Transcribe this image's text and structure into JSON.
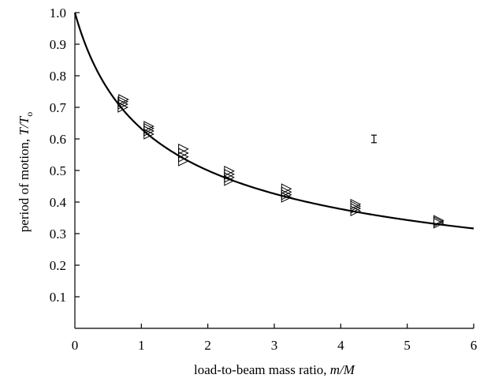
{
  "chart_data": {
    "type": "scatter",
    "title": "",
    "xlabel": {
      "prefix": "load-to-beam mass ratio, ",
      "italic": "m/M"
    },
    "ylabel": {
      "prefix": "period of motion, ",
      "italic_t": "T/T",
      "subscript": "o"
    },
    "xlim": [
      0,
      6
    ],
    "ylim": [
      0,
      1
    ],
    "x_ticks": [
      "0",
      "1",
      "2",
      "3",
      "4",
      "5",
      "6"
    ],
    "y_ticks": [
      "0.1",
      "0.2",
      "0.3",
      "0.4",
      "0.5",
      "0.6",
      "0.7",
      "0.8",
      "0.9",
      "1.0"
    ],
    "grid": false,
    "marker": "right-pointing triangle (open)",
    "series": [
      {
        "points": [
          {
            "x": 0.71,
            "y": 0.7
          },
          {
            "x": 0.71,
            "y": 0.71
          },
          {
            "x": 0.71,
            "y": 0.718
          },
          {
            "x": 0.72,
            "y": 0.725
          },
          {
            "x": 1.1,
            "y": 0.615
          },
          {
            "x": 1.1,
            "y": 0.625
          },
          {
            "x": 1.1,
            "y": 0.633
          },
          {
            "x": 1.1,
            "y": 0.64
          },
          {
            "x": 1.62,
            "y": 0.53
          },
          {
            "x": 1.62,
            "y": 0.543
          },
          {
            "x": 1.62,
            "y": 0.555
          },
          {
            "x": 1.62,
            "y": 0.568
          },
          {
            "x": 2.31,
            "y": 0.468
          },
          {
            "x": 2.31,
            "y": 0.478
          },
          {
            "x": 2.31,
            "y": 0.488
          },
          {
            "x": 2.31,
            "y": 0.498
          },
          {
            "x": 3.17,
            "y": 0.415
          },
          {
            "x": 3.17,
            "y": 0.423
          },
          {
            "x": 3.17,
            "y": 0.432
          },
          {
            "x": 3.17,
            "y": 0.442
          },
          {
            "x": 4.21,
            "y": 0.372
          },
          {
            "x": 4.21,
            "y": 0.38
          },
          {
            "x": 4.21,
            "y": 0.387
          },
          {
            "x": 4.21,
            "y": 0.393
          },
          {
            "x": 5.46,
            "y": 0.333
          },
          {
            "x": 5.46,
            "y": 0.338
          },
          {
            "x": 5.46,
            "y": 0.342
          }
        ]
      }
    ],
    "fit_curve": {
      "description": "T/To = 1/sqrt(1 + 1.5 m/M)",
      "coefficient": 1.5,
      "x_start": 0,
      "x_end": 6
    },
    "error_bar": {
      "x": 4.5,
      "y": 0.6,
      "low": 0.588,
      "high": 0.612
    }
  }
}
